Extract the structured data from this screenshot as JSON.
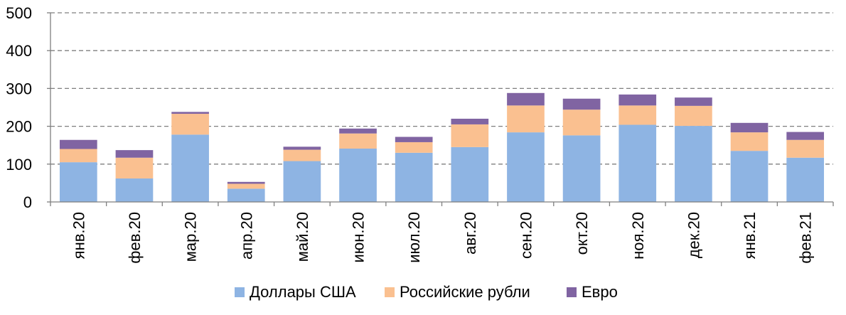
{
  "chart_data": {
    "type": "bar",
    "stacked": true,
    "title": "",
    "xlabel": "",
    "ylabel": "",
    "ylim": [
      0,
      500
    ],
    "yticks": [
      0,
      100,
      200,
      300,
      400,
      500
    ],
    "grid": "horizontal-dashed",
    "legend_position": "bottom",
    "categories": [
      "янв.20",
      "фев.20",
      "мар.20",
      "апр.20",
      "май.20",
      "июн.20",
      "июл.20",
      "авг.20",
      "сен.20",
      "окт.20",
      "ноя.20",
      "дек.20",
      "янв.21",
      "фев.21"
    ],
    "series": [
      {
        "name": "Доллары США",
        "color": "#8eb4e3",
        "values": [
          105,
          62,
          178,
          35,
          108,
          141,
          130,
          145,
          184,
          176,
          204,
          201,
          135,
          117
        ]
      },
      {
        "name": "Российские рубли",
        "color": "#fac090",
        "values": [
          35,
          55,
          55,
          13,
          30,
          40,
          28,
          60,
          71,
          68,
          51,
          53,
          49,
          47
        ]
      },
      {
        "name": "Евро",
        "color": "#8064a2",
        "values": [
          24,
          20,
          5,
          5,
          8,
          13,
          14,
          15,
          33,
          29,
          29,
          22,
          25,
          21
        ]
      }
    ]
  }
}
